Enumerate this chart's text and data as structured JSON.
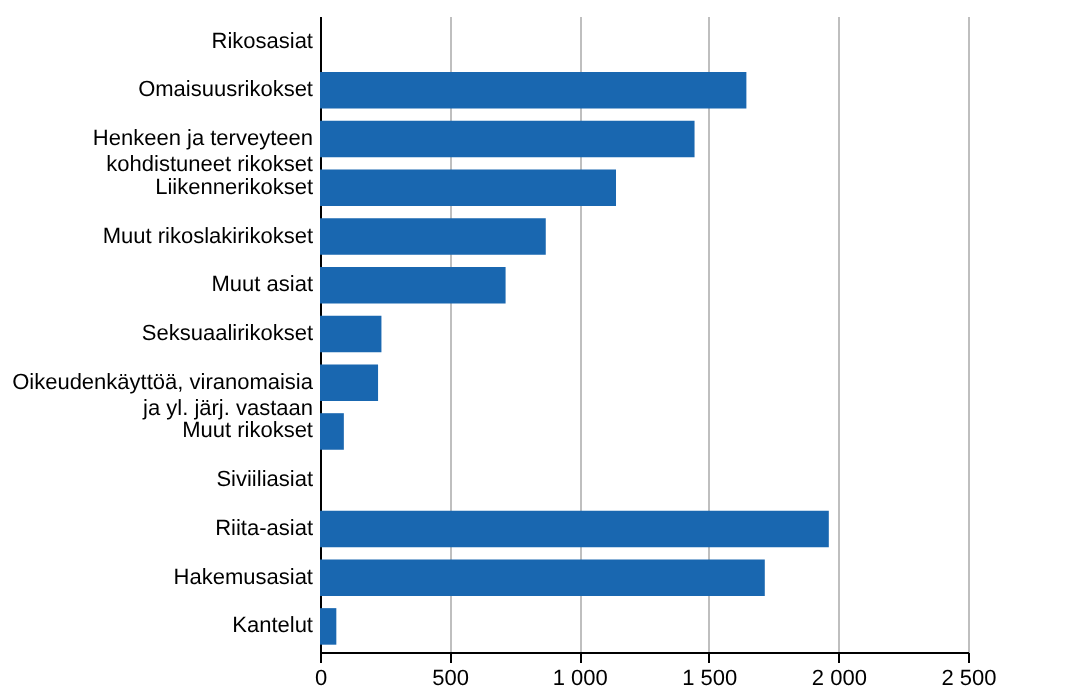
{
  "chart_data": {
    "type": "bar",
    "orientation": "horizontal",
    "color": "#1967b0",
    "categories": [
      "Rikosasiat",
      "Omaisuusrikokset",
      "Henkeen ja terveyteen\nkohdistuneet rikokset",
      "Liikennerikokset",
      "Muut rikoslakirikokset",
      "Muut asiat",
      "Seksuaalirikokset",
      "Oikeudenkäyttöä, viranomaisia\nja yl. järj. vastaan",
      "Muut rikokset",
      "Siviiliasiat",
      "Riita-asiat",
      "Hakemusasiat",
      "Kantelut"
    ],
    "values": [
      null,
      1645,
      1445,
      1142,
      871,
      716,
      237,
      224,
      92,
      null,
      1963,
      1716,
      63
    ],
    "xlim": [
      0,
      2500
    ],
    "xticks": [
      0,
      500,
      {
        "value": 1000,
        "label": "1 000"
      },
      {
        "value": 1500,
        "label": "1 500"
      },
      {
        "value": 2000,
        "label": "2 000"
      },
      {
        "value": 2500,
        "label": "2 500"
      }
    ],
    "grid": "x"
  }
}
